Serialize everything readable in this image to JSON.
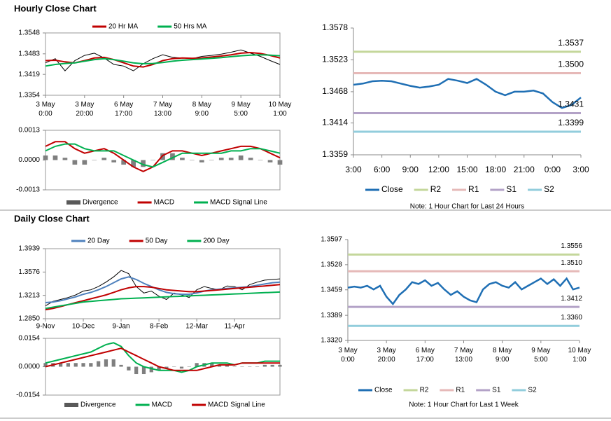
{
  "chart_data": [
    {
      "type": "line",
      "title": "Hourly Close Chart",
      "legend": "top",
      "categories": [
        [
          "3 May",
          "0:00"
        ],
        null,
        null,
        null,
        [
          "3 May",
          "20:00"
        ],
        null,
        null,
        null,
        [
          "6 May",
          "17:00"
        ],
        null,
        null,
        null,
        [
          "7 May",
          "13:00"
        ],
        null,
        null,
        null,
        [
          "8 May",
          "9:00"
        ],
        null,
        null,
        null,
        [
          "9 May",
          "5:00"
        ],
        null,
        null,
        null,
        [
          "10 May",
          "1:00"
        ]
      ],
      "ylim": [
        1.3354,
        1.3548
      ],
      "yticks": [
        1.3354,
        1.3419,
        1.3483,
        1.3548
      ],
      "series": [
        {
          "color": "#000000",
          "values": [
            1.3455,
            1.3468,
            1.343,
            1.3462,
            1.3478,
            1.3485,
            1.347,
            1.345,
            1.3445,
            1.343,
            1.3452,
            1.3468,
            1.348,
            1.3472,
            1.347,
            1.3468,
            1.3475,
            1.3478,
            1.3482,
            1.3488,
            1.3495,
            1.3485,
            1.3475,
            1.3462,
            1.345
          ]
        },
        {
          "name": "20 Hr MA",
          "color": "#c00000",
          "values": [
            1.3462,
            1.3463,
            1.3458,
            1.3455,
            1.3462,
            1.347,
            1.3472,
            1.3465,
            1.3455,
            1.3445,
            1.3442,
            1.345,
            1.3462,
            1.3468,
            1.347,
            1.3469,
            1.347,
            1.3473,
            1.3476,
            1.348,
            1.3485,
            1.3487,
            1.3484,
            1.3478,
            1.347
          ]
        },
        {
          "name": "50 Hrs MA",
          "color": "#00b050",
          "values": [
            1.3445,
            1.345,
            1.3453,
            1.3455,
            1.346,
            1.3465,
            1.3468,
            1.3465,
            1.346,
            1.3455,
            1.3452,
            1.3453,
            1.3456,
            1.346,
            1.3463,
            1.3465,
            1.3467,
            1.3469,
            1.3471,
            1.3474,
            1.3477,
            1.3479,
            1.348,
            1.3479,
            1.3477
          ]
        }
      ]
    },
    {
      "type": "line",
      "legend": "bottom",
      "ylim": [
        -0.0013,
        0.0013
      ],
      "yticks": [
        -0.0013,
        {
          "value": 0,
          "label": "0.0000"
        },
        0.0013
      ],
      "series": [
        {
          "name": "Divergence",
          "type": "bar",
          "color": "#7f7f7f",
          "values": [
            0.0002,
            0.0002,
            0.0001,
            -0.0002,
            -0.0002,
            0,
            0.0001,
            -0.0001,
            -0.0002,
            -0.0003,
            -0.0003,
            0,
            0.0003,
            0.0003,
            0.0001,
            0,
            -0.0001,
            0,
            0.0001,
            0.0001,
            0.0002,
            0.0001,
            0,
            -0.0001,
            -0.0002
          ]
        },
        {
          "name": "MACD",
          "color": "#c00000",
          "values": [
            0.0006,
            0.0008,
            0.0008,
            0.0005,
            0.0003,
            0.0004,
            0.0005,
            0.0003,
            0,
            -0.0003,
            -0.0005,
            -0.0003,
            0.0002,
            0.0004,
            0.0004,
            0.0003,
            0.0002,
            0.0003,
            0.0004,
            0.0005,
            0.0006,
            0.0006,
            0.0005,
            0.0003,
            0.0001
          ]
        },
        {
          "name": "MACD Signal Line",
          "color": "#00b050",
          "values": [
            0.0004,
            0.0006,
            0.0007,
            0.0007,
            0.0005,
            0.0004,
            0.0004,
            0.0004,
            0.0002,
            0,
            -0.0002,
            -0.0003,
            -0.0001,
            0.0001,
            0.0003,
            0.0003,
            0.0003,
            0.0003,
            0.0003,
            0.0004,
            0.0004,
            0.0005,
            0.0005,
            0.0004,
            0.0003
          ]
        }
      ]
    },
    {
      "type": "line",
      "legend": "bottom",
      "annotation": "Note: 1 Hour Chart for Last 24 Hours",
      "categories": [
        "3:00",
        null,
        null,
        "6:00",
        null,
        null,
        "9:00",
        null,
        null,
        "12:00",
        null,
        null,
        "15:00",
        null,
        null,
        "18:00",
        null,
        null,
        "21:00",
        null,
        null,
        "0:00",
        null,
        null,
        "3:00"
      ],
      "ylim": [
        1.3359,
        1.3578
      ],
      "yticks": [
        1.3359,
        1.3414,
        1.3468,
        1.3523,
        1.3578
      ],
      "series": [
        {
          "name": "Close",
          "color": "#1f6fb4",
          "values": [
            1.348,
            1.3482,
            1.3486,
            1.3487,
            1.3486,
            1.3482,
            1.3478,
            1.3475,
            1.3477,
            1.348,
            1.349,
            1.3487,
            1.3483,
            1.349,
            1.348,
            1.3468,
            1.3462,
            1.3468,
            1.3468,
            1.347,
            1.3465,
            1.345,
            1.344,
            1.3445,
            1.3458
          ]
        },
        {
          "name": "R2",
          "color": "#c4d79b",
          "value": 1.3537,
          "value_label": "1.3537"
        },
        {
          "name": "R1",
          "color": "#e6b9b8",
          "value": 1.35,
          "value_label": "1.3500"
        },
        {
          "name": "S1",
          "color": "#b3a2c7",
          "value": 1.3431,
          "value_label": "1.3431"
        },
        {
          "name": "S2",
          "color": "#92cddc",
          "value": 1.3399,
          "value_label": "1.3399"
        }
      ]
    },
    {
      "type": "line",
      "title": "Daily Close Chart",
      "legend": "top",
      "categories": [
        "9-Nov",
        null,
        null,
        null,
        null,
        "10-Dec",
        null,
        null,
        null,
        null,
        "9-Jan",
        null,
        null,
        null,
        null,
        "8-Feb",
        null,
        null,
        null,
        null,
        "12-Mar",
        null,
        null,
        null,
        null,
        "11-Apr",
        null,
        null,
        null,
        null,
        null,
        null
      ],
      "ylim": [
        1.285,
        1.3939
      ],
      "yticks": [
        {
          "value": 1.285,
          "label": "1.2850"
        },
        1.3213,
        1.3576,
        1.3939
      ],
      "series": [
        {
          "color": "#000000",
          "values": [
            1.305,
            1.312,
            1.315,
            1.318,
            1.322,
            1.328,
            1.33,
            1.335,
            1.342,
            1.35,
            1.36,
            1.355,
            1.335,
            1.325,
            1.328,
            1.32,
            1.315,
            1.325,
            1.322,
            1.318,
            1.33,
            1.335,
            1.332,
            1.33,
            1.336,
            1.335,
            1.33,
            1.338,
            1.342,
            1.345,
            1.346,
            1.347
          ]
        },
        {
          "name": "20 Day",
          "color": "#4f81bd",
          "values": [
            1.31,
            1.311,
            1.313,
            1.316,
            1.319,
            1.323,
            1.326,
            1.33,
            1.335,
            1.341,
            1.347,
            1.35,
            1.346,
            1.34,
            1.335,
            1.33,
            1.326,
            1.324,
            1.323,
            1.323,
            1.325,
            1.328,
            1.33,
            1.331,
            1.332,
            1.333,
            1.334,
            1.335,
            1.337,
            1.339,
            1.341,
            1.342
          ]
        },
        {
          "name": "50 Day",
          "color": "#c00000",
          "values": [
            1.299,
            1.301,
            1.304,
            1.307,
            1.31,
            1.313,
            1.316,
            1.319,
            1.322,
            1.326,
            1.33,
            1.333,
            1.335,
            1.335,
            1.334,
            1.332,
            1.33,
            1.329,
            1.328,
            1.327,
            1.327,
            1.328,
            1.329,
            1.33,
            1.331,
            1.332,
            1.333,
            1.334,
            1.335,
            1.336,
            1.337,
            1.338
          ]
        },
        {
          "name": "200 Day",
          "color": "#00b050",
          "values": [
            1.301,
            1.303,
            1.305,
            1.307,
            1.309,
            1.311,
            1.312,
            1.313,
            1.314,
            1.315,
            1.316,
            1.3165,
            1.317,
            1.3175,
            1.318,
            1.3185,
            1.319,
            1.3195,
            1.32,
            1.3205,
            1.321,
            1.3215,
            1.322,
            1.3225,
            1.323,
            1.3235,
            1.324,
            1.3245,
            1.325,
            1.3255,
            1.326,
            1.3265
          ]
        }
      ]
    },
    {
      "type": "line",
      "legend": "bottom",
      "ylim": [
        -0.0154,
        0.0154
      ],
      "yticks": [
        -0.0154,
        {
          "value": 0,
          "label": "0.0000"
        },
        0.0154
      ],
      "series": [
        {
          "name": "Divergence",
          "type": "bar",
          "color": "#7f7f7f",
          "values": [
            0.002,
            0.002,
            0.002,
            0.002,
            0.002,
            0.002,
            0.002,
            0.003,
            0.004,
            0.004,
            0.001,
            -0.002,
            -0.004,
            -0.004,
            -0.003,
            -0.002,
            -0.001,
            0,
            -0.001,
            0,
            0.002,
            0.002,
            0.002,
            0.001,
            0.001,
            0,
            0,
            0,
            0,
            0.001,
            0.001,
            0.001
          ]
        },
        {
          "name": "MACD",
          "color": "#00b050",
          "values": [
            0.002,
            0.003,
            0.004,
            0.005,
            0.006,
            0.007,
            0.008,
            0.01,
            0.012,
            0.013,
            0.011,
            0.006,
            0.002,
            0,
            -0.001,
            -0.002,
            -0.002,
            -0.002,
            -0.003,
            -0.002,
            0,
            0.001,
            0.002,
            0.002,
            0.002,
            0.001,
            0.002,
            0.002,
            0.002,
            0.003,
            0.003,
            0.003
          ]
        },
        {
          "name": "MACD Signal Line",
          "color": "#c00000",
          "values": [
            0,
            0.001,
            0.002,
            0.003,
            0.004,
            0.005,
            0.006,
            0.007,
            0.008,
            0.009,
            0.01,
            0.008,
            0.006,
            0.004,
            0.002,
            0,
            -0.001,
            -0.002,
            -0.002,
            -0.002,
            -0.002,
            -0.001,
            0,
            0.001,
            0.001,
            0.001,
            0.002,
            0.002,
            0.002,
            0.002,
            0.002,
            0.002
          ]
        }
      ]
    },
    {
      "type": "line",
      "legend": "bottom",
      "annotation": "Note: 1 Hour Chart for Last 1 Week",
      "categories": [
        [
          "3 May",
          "0:00"
        ],
        null,
        null,
        null,
        null,
        null,
        [
          "3 May",
          "20:00"
        ],
        null,
        null,
        null,
        null,
        null,
        [
          "6 May",
          "17:00"
        ],
        null,
        null,
        null,
        null,
        null,
        [
          "7 May",
          "13:00"
        ],
        null,
        null,
        null,
        null,
        null,
        [
          "8 May",
          "9:00"
        ],
        null,
        null,
        null,
        null,
        null,
        [
          "9 May",
          "5:00"
        ],
        null,
        null,
        null,
        null,
        null,
        [
          "10 May",
          "1:00"
        ]
      ],
      "ylim": [
        1.332,
        1.3597
      ],
      "yticks": [
        {
          "value": 1.332,
          "label": "1.3320"
        },
        1.3389,
        1.3459,
        1.3528,
        1.3597
      ],
      "series": [
        {
          "name": "Close",
          "color": "#1f6fb4",
          "values": [
            1.3465,
            1.3468,
            1.3465,
            1.347,
            1.346,
            1.347,
            1.344,
            1.342,
            1.3445,
            1.346,
            1.348,
            1.3475,
            1.3485,
            1.347,
            1.3478,
            1.346,
            1.3445,
            1.3455,
            1.344,
            1.343,
            1.3425,
            1.346,
            1.3475,
            1.348,
            1.347,
            1.3465,
            1.348,
            1.346,
            1.347,
            1.348,
            1.349,
            1.3475,
            1.3488,
            1.347,
            1.349,
            1.346,
            1.3465
          ]
        },
        {
          "name": "R2",
          "color": "#c4d79b",
          "value": 1.3556,
          "value_label": "1.3556"
        },
        {
          "name": "R1",
          "color": "#e6b9b8",
          "value": 1.351,
          "value_label": "1.3510"
        },
        {
          "name": "S1",
          "color": "#b3a2c7",
          "value": 1.3412,
          "value_label": "1.3412"
        },
        {
          "name": "S2",
          "color": "#92cddc",
          "value": 1.336,
          "value_label": "1.3360"
        }
      ]
    }
  ]
}
